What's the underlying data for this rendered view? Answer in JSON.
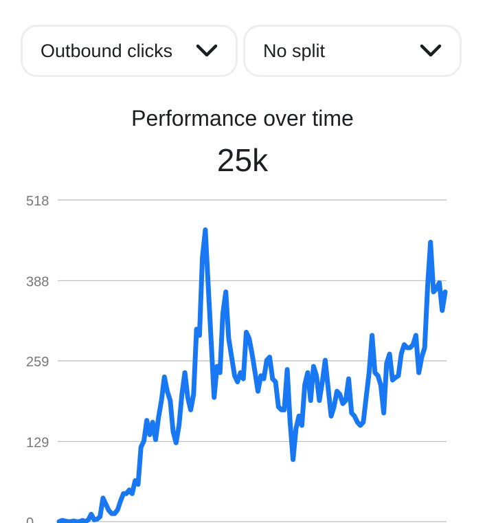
{
  "controls": {
    "metric": {
      "label": "Outbound clicks",
      "icon": "chevron-down-icon"
    },
    "split": {
      "label": "No split",
      "icon": "chevron-down-icon"
    }
  },
  "header": {
    "title": "Performance over time",
    "total": "25k"
  },
  "colors": {
    "line": "#1877f2",
    "grid": "#bcbcbc",
    "tick_text": "#777777"
  },
  "chart_data": {
    "type": "line",
    "title": "Performance over time",
    "xlabel": "",
    "ylabel": "",
    "ylim": [
      0,
      518
    ],
    "y_ticks": [
      0,
      129,
      259,
      388,
      518
    ],
    "y_tick_labels": [
      "0",
      "129",
      "259",
      "388",
      "518"
    ],
    "grid": true,
    "series": [
      {
        "values": [
          0,
          2,
          1,
          0,
          0,
          1,
          0,
          0,
          2,
          0,
          3,
          12,
          3,
          4,
          8,
          38,
          28,
          18,
          13,
          13,
          19,
          33,
          45,
          45,
          51,
          45,
          66,
          60,
          120,
          130,
          163,
          140,
          160,
          132,
          168,
          195,
          233,
          210,
          195,
          145,
          127,
          155,
          205,
          240,
          200,
          180,
          205,
          310,
          300,
          425,
          470,
          380,
          290,
          200,
          250,
          240,
          335,
          370,
          295,
          265,
          235,
          225,
          240,
          230,
          305,
          295,
          270,
          240,
          210,
          235,
          230,
          260,
          265,
          230,
          225,
          185,
          180,
          180,
          245,
          160,
          100,
          150,
          170,
          155,
          220,
          240,
          195,
          250,
          235,
          195,
          225,
          260,
          215,
          170,
          185,
          210,
          205,
          190,
          195,
          230,
          175,
          170,
          160,
          155,
          160,
          200,
          240,
          300,
          240,
          235,
          220,
          175,
          255,
          270,
          228,
          232,
          235,
          270,
          285,
          280,
          280,
          285,
          300,
          240,
          265,
          280,
          380,
          450,
          370,
          375,
          385,
          340,
          370
        ]
      }
    ]
  }
}
